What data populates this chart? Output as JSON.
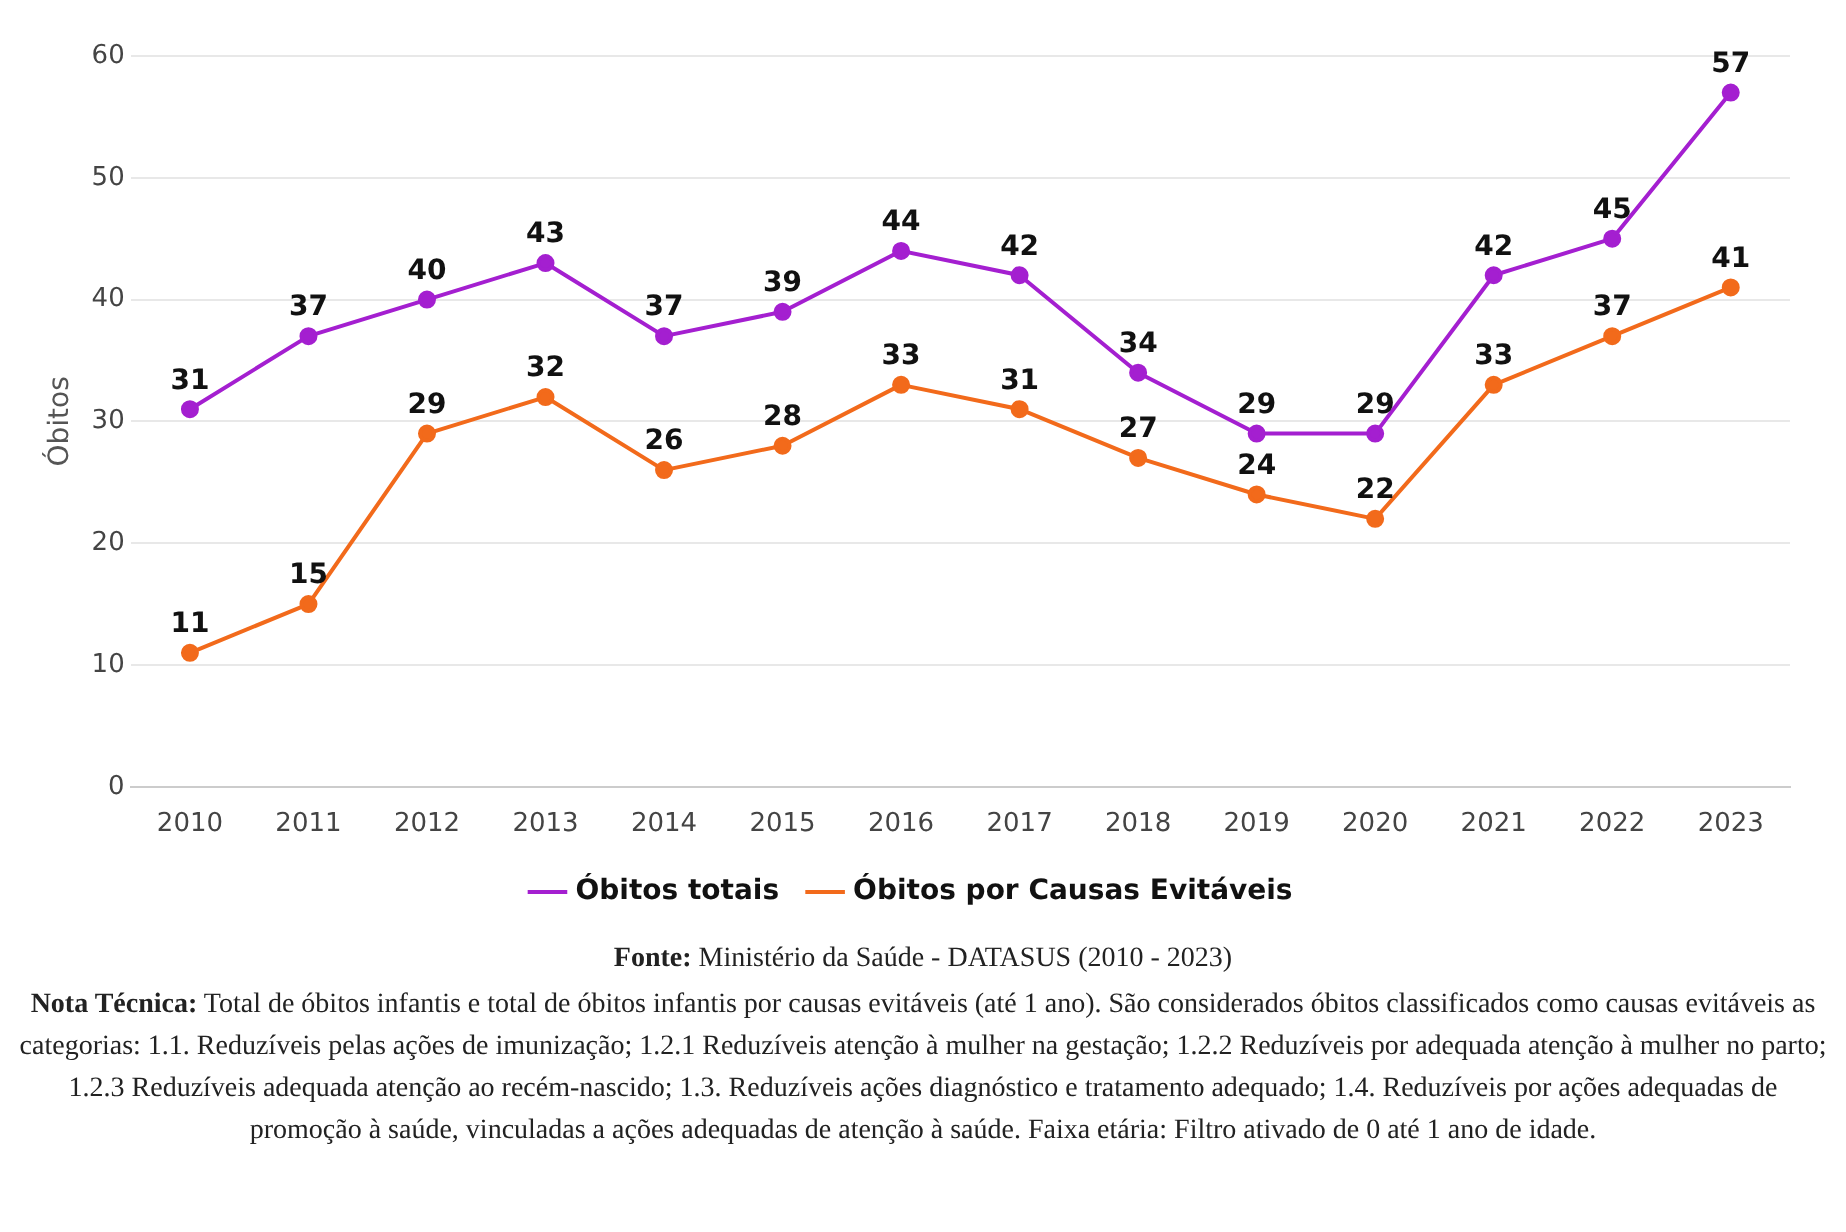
{
  "chart_data": {
    "type": "line",
    "ylabel": "Óbitos",
    "categories": [
      "2010",
      "2011",
      "2012",
      "2013",
      "2014",
      "2015",
      "2016",
      "2017",
      "2018",
      "2019",
      "2020",
      "2021",
      "2022",
      "2023"
    ],
    "series": [
      {
        "name": "Óbitos totais",
        "color": "#a41fd0",
        "values": [
          31,
          37,
          40,
          43,
          37,
          39,
          44,
          42,
          34,
          29,
          29,
          42,
          45,
          57
        ]
      },
      {
        "name": "Óbitos por Causas Evitáveis",
        "color": "#f26a1b",
        "values": [
          11,
          15,
          29,
          32,
          26,
          28,
          33,
          31,
          27,
          24,
          22,
          33,
          37,
          41
        ]
      }
    ],
    "ylim": [
      0,
      60
    ],
    "yticks": [
      0,
      10,
      20,
      30,
      40,
      50,
      60
    ],
    "grid": "y",
    "legend": "bottom",
    "marker": "circle",
    "line_style": "solid",
    "data_labels": true,
    "annotations": [
      "Fonte: Ministério da Saúde - DATASUS (2010 - 2023)",
      "Nota Técnica: Total de óbitos infantis e total de óbitos infantis por causas evitáveis (até 1 ano). São considerados óbitos classificados como causas evitáveis as categorias: 1.1. Reduzíveis pelas ações de imunização; 1.2.1 Reduzíveis atenção à mulher na gestação; 1.2.2 Reduzíveis por adequada atenção à mulher no parto; 1.2.3 Reduzíveis adequada atenção ao recém-nascido; 1.3. Reduzíveis ações diagnóstico e tratamento adequado; 1.4. Reduzíveis por ações adequadas de promoção à saúde, vinculadas a ações adequadas de atenção à saúde. Faixa etária: Filtro ativado de 0 até 1 ano de idade."
    ]
  }
}
